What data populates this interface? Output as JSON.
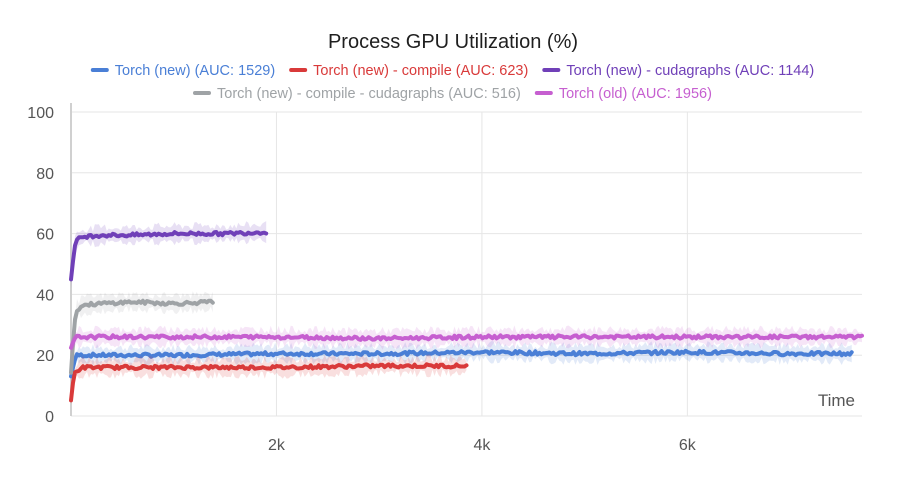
{
  "chart_data": {
    "type": "line",
    "title": "Process GPU Utilization (%)",
    "xlabel": "Time",
    "ylabel": "",
    "xlim": [
      0,
      7700
    ],
    "ylim": [
      0,
      100
    ],
    "xticks": [
      2000,
      4000,
      6000
    ],
    "xtick_labels": [
      "2k",
      "4k",
      "6k"
    ],
    "yticks": [
      0,
      20,
      40,
      60,
      80,
      100
    ],
    "ytick_labels": [
      "0",
      "20",
      "40",
      "60",
      "80",
      "100"
    ],
    "grid": true,
    "legend_position": "top-center",
    "series": [
      {
        "name": "Torch (new) (AUC: 1529)",
        "color": "#4a7fd6",
        "x": [
          0,
          30,
          60,
          120,
          500,
          1000,
          2000,
          3000,
          4000,
          5000,
          6000,
          7000,
          7600
        ],
        "y": [
          13,
          18,
          20,
          20,
          20,
          20,
          20.5,
          20.5,
          21,
          20.5,
          21,
          20.5,
          20.5
        ]
      },
      {
        "name": "Torch (new) - compile (AUC: 623)",
        "color": "#d93a3a",
        "x": [
          0,
          30,
          60,
          120,
          500,
          1000,
          2000,
          3000,
          3850
        ],
        "y": [
          5,
          14,
          15,
          16,
          16,
          16,
          16,
          16.5,
          16.5
        ]
      },
      {
        "name": "Torch (new) - cudagraphs (AUC: 1144)",
        "color": "#7040b8",
        "x": [
          0,
          30,
          60,
          120,
          300,
          600,
          1000,
          1500,
          1900
        ],
        "y": [
          45,
          55,
          58,
          59,
          59.5,
          59.5,
          60,
          60,
          60.5
        ]
      },
      {
        "name": "Torch (new) - compile - cudagraphs (AUC: 516)",
        "color": "#9fa3a6",
        "x": [
          0,
          30,
          60,
          120,
          300,
          600,
          1000,
          1380
        ],
        "y": [
          14,
          30,
          35,
          36.5,
          37,
          37.5,
          37,
          37.5
        ]
      },
      {
        "name": "Torch (old) (AUC: 1956)",
        "color": "#c65fd0",
        "x": [
          0,
          30,
          60,
          120,
          500,
          1000,
          2000,
          3000,
          4000,
          5000,
          6000,
          7000,
          7700
        ],
        "y": [
          22,
          25,
          26,
          26,
          26,
          26,
          26,
          25.5,
          26,
          26,
          26,
          26,
          26
        ]
      }
    ]
  }
}
